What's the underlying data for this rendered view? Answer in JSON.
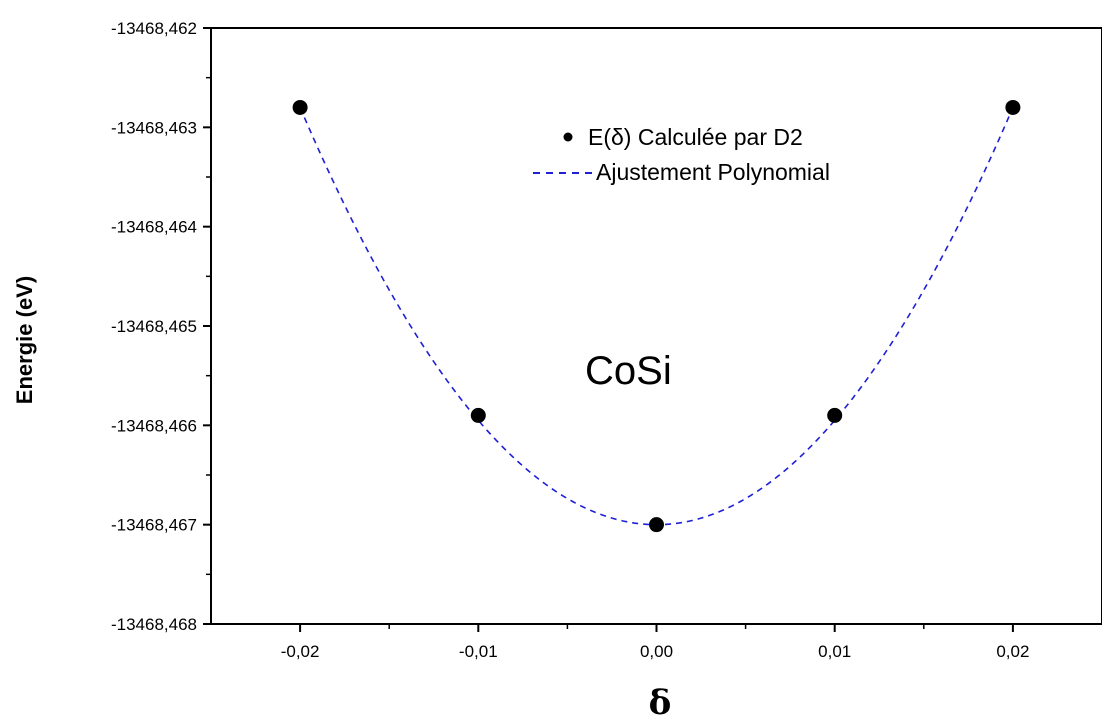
{
  "chart_data": {
    "type": "scatter",
    "title": "",
    "xlabel": "δ",
    "ylabel": "Energie (eV)",
    "xlim": [
      -0.025,
      0.025
    ],
    "ylim": [
      -13468.468,
      -13468.462
    ],
    "xticks": [
      {
        "value": -0.02,
        "label": "-0,02"
      },
      {
        "value": -0.01,
        "label": "-0,01"
      },
      {
        "value": 0.0,
        "label": "0,00"
      },
      {
        "value": 0.01,
        "label": "0,01"
      },
      {
        "value": 0.02,
        "label": "0,02"
      }
    ],
    "yticks": [
      {
        "value": -13468.462,
        "label": "-13468,462"
      },
      {
        "value": -13468.463,
        "label": "-13468,463"
      },
      {
        "value": -13468.464,
        "label": "-13468,464"
      },
      {
        "value": -13468.465,
        "label": "-13468,465"
      },
      {
        "value": -13468.466,
        "label": "-13468,466"
      },
      {
        "value": -13468.467,
        "label": "-13468,467"
      },
      {
        "value": -13468.468,
        "label": "-13468,468"
      }
    ],
    "series": [
      {
        "name": "E(δ) Calculée par D2",
        "kind": "points",
        "color": "#000000",
        "x": [
          -0.02,
          -0.01,
          0.0,
          0.01,
          0.02
        ],
        "y": [
          -13468.4628,
          -13468.4659,
          -13468.467,
          -13468.4659,
          -13468.4628
        ]
      },
      {
        "name": "Ajustement Polynomial",
        "kind": "fit",
        "style": "dashed",
        "color": "#1f1fd6",
        "x_range": [
          -0.02,
          0.02
        ],
        "polynomial": {
          "c0": -13468.467,
          "c1": 0,
          "c2": 10.5
        }
      }
    ],
    "annotation": "CoSi",
    "grid": false,
    "legend_position": "top-right"
  }
}
